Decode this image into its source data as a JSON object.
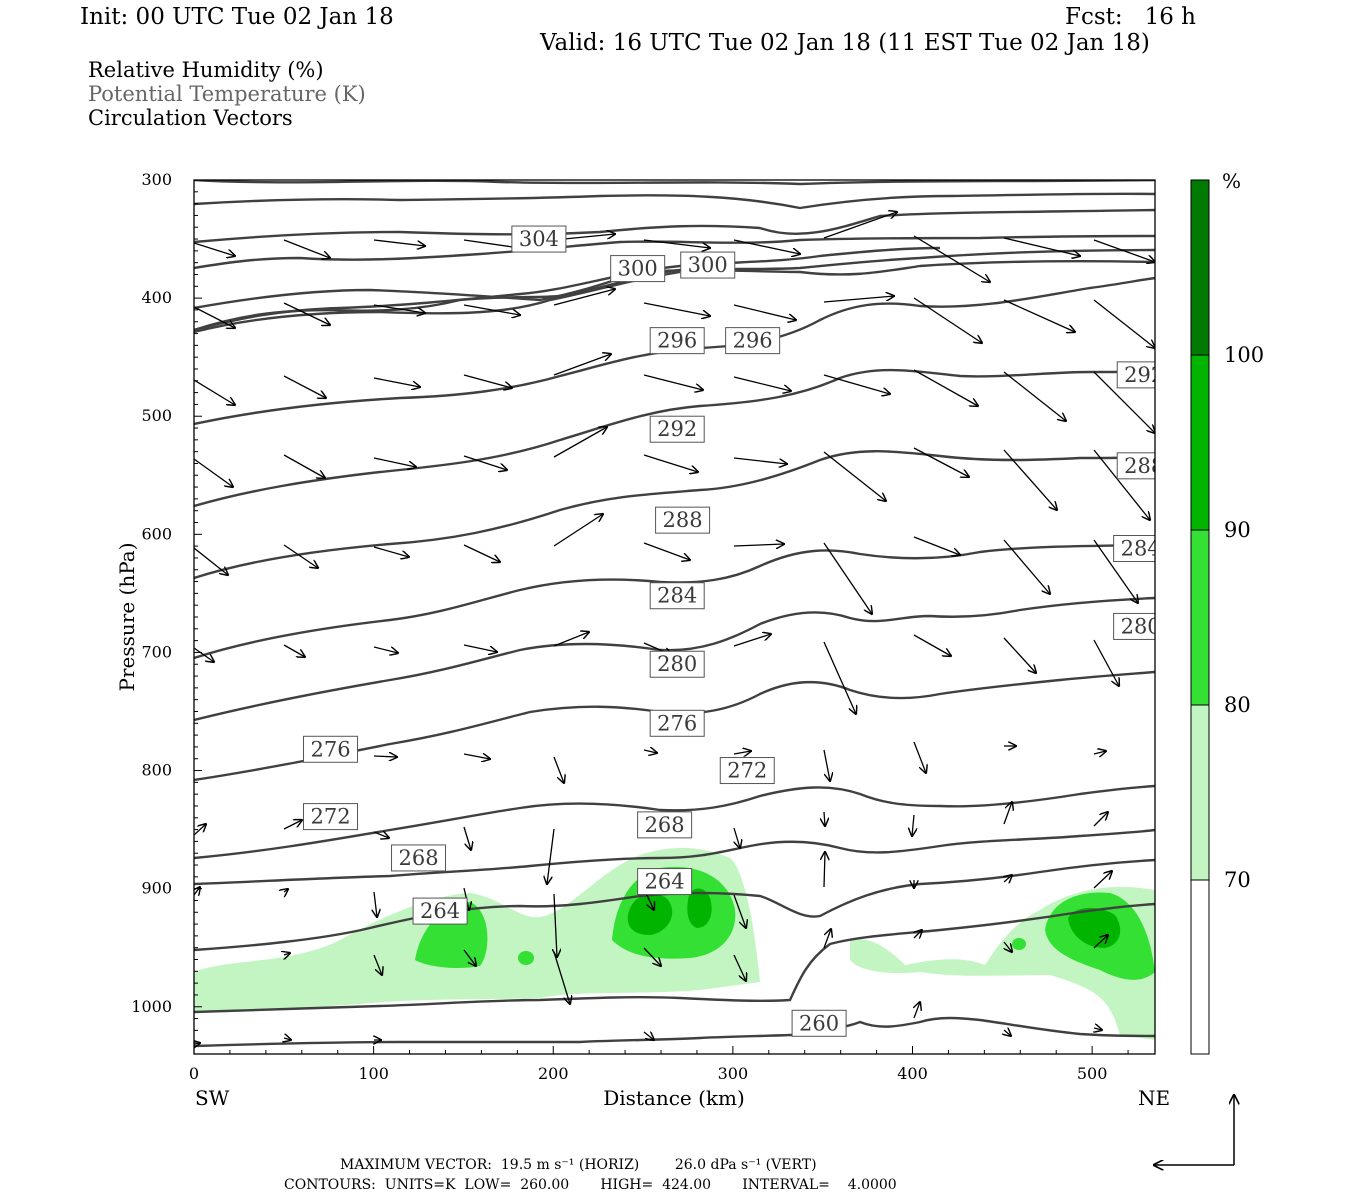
{
  "header": {
    "init": "Init: 00 UTC Tue 02 Jan 18",
    "fcst": "Fcst:   16 h",
    "valid": "Valid: 16 UTC Tue 02 Jan 18 (11 EST Tue 02 Jan 18)"
  },
  "legend": [
    {
      "text": "Relative Humidity (%)",
      "color": "#000000"
    },
    {
      "text": "Potential Temperature (K)",
      "color": "#666666"
    },
    {
      "text": "Circulation Vectors",
      "color": "#000000"
    }
  ],
  "footer": {
    "line1": "MAXIMUM VECTOR:  19.5 m s⁻¹ (HORIZ)        26.0 dPa s⁻¹ (VERT)",
    "line2": "CONTOURS:  UNITS=K  LOW=  260.00       HIGH=  424.00       INTERVAL=    4.0000"
  },
  "chart_data": {
    "type": "contour",
    "xlabel": "Distance (km)",
    "ylabel": "Pressure (hPa)",
    "x_ticks": [
      "0",
      "100",
      "200",
      "300",
      "400",
      "500"
    ],
    "y_ticks": [
      "300",
      "400",
      "500",
      "600",
      "700",
      "800",
      "900",
      "1000"
    ],
    "xlim": [
      0,
      535
    ],
    "ylim": [
      1040,
      300
    ],
    "left_end_label": "SW",
    "right_end_label": "NE",
    "colorbar": {
      "unit": "%",
      "levels": [
        "70",
        "80",
        "90",
        "100"
      ],
      "colors": [
        "#ffffff",
        "#c2f5c2",
        "#33e033",
        "#00b400",
        "#007a00"
      ]
    },
    "theta_labels": [
      {
        "text": "304",
        "x": 192,
        "p": 350
      },
      {
        "text": "300",
        "x": 247,
        "p": 375
      },
      {
        "text": "300",
        "x": 286,
        "p": 372
      },
      {
        "text": "296",
        "x": 269,
        "p": 436
      },
      {
        "text": "296",
        "x": 311,
        "p": 436
      },
      {
        "text": "292",
        "x": 529,
        "p": 465
      },
      {
        "text": "292",
        "x": 269,
        "p": 511
      },
      {
        "text": "288",
        "x": 529,
        "p": 542
      },
      {
        "text": "288",
        "x": 272,
        "p": 588
      },
      {
        "text": "284",
        "x": 527,
        "p": 612
      },
      {
        "text": "284",
        "x": 269,
        "p": 652
      },
      {
        "text": "280",
        "x": 527,
        "p": 678
      },
      {
        "text": "280",
        "x": 269,
        "p": 710
      },
      {
        "text": "276",
        "x": 76,
        "p": 782
      },
      {
        "text": "276",
        "x": 269,
        "p": 760
      },
      {
        "text": "272",
        "x": 308,
        "p": 800
      },
      {
        "text": "272",
        "x": 76,
        "p": 839
      },
      {
        "text": "268",
        "x": 262,
        "p": 846
      },
      {
        "text": "268",
        "x": 125,
        "p": 874
      },
      {
        "text": "264",
        "x": 262,
        "p": 894
      },
      {
        "text": "264",
        "x": 137,
        "p": 919
      },
      {
        "text": "260",
        "x": 348,
        "p": 1014
      }
    ]
  }
}
